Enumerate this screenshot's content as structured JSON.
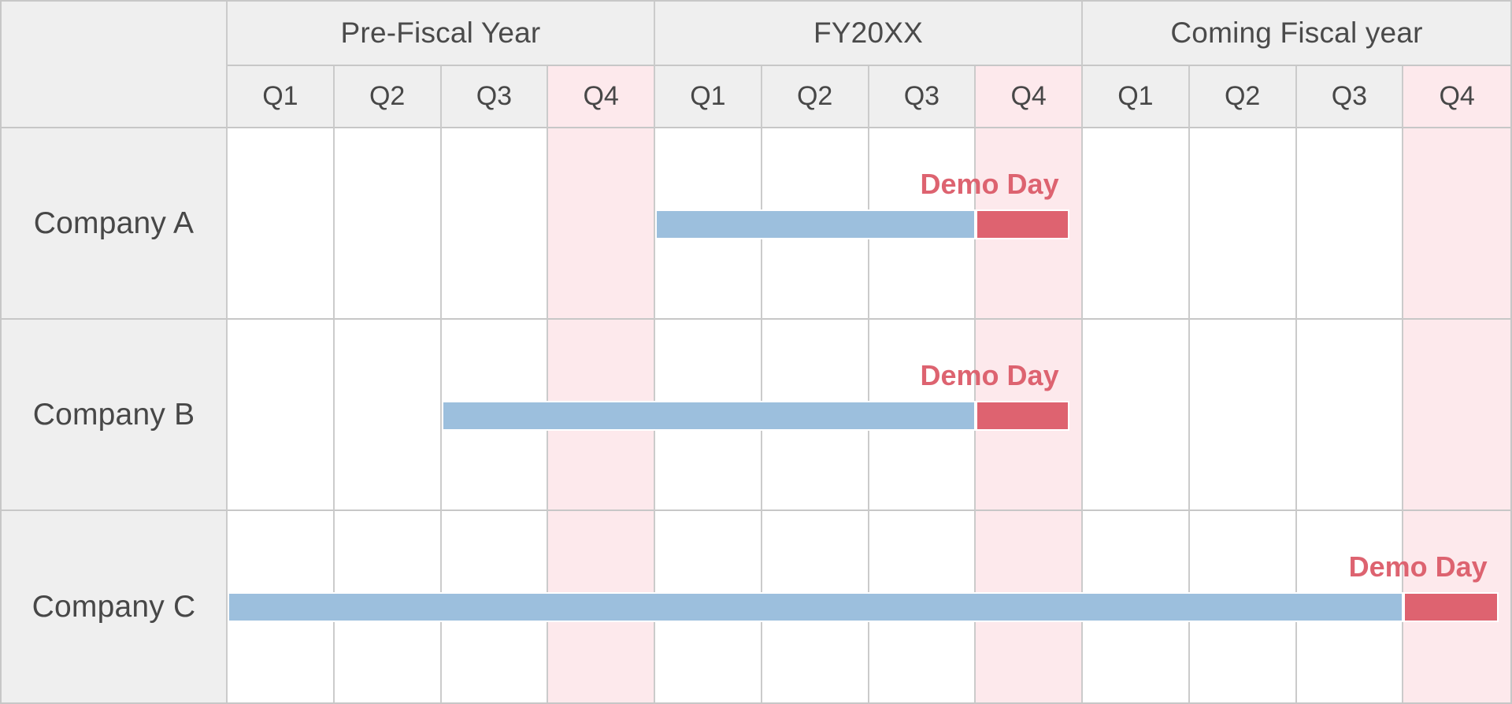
{
  "table": {
    "sections": [
      {
        "label": "Pre-Fiscal Year"
      },
      {
        "label": "FY20XX"
      },
      {
        "label": "Coming Fiscal year"
      }
    ],
    "quarters": [
      "Q1",
      "Q2",
      "Q3",
      "Q4",
      "Q1",
      "Q2",
      "Q3",
      "Q4",
      "Q1",
      "Q2",
      "Q3",
      "Q4"
    ],
    "rows": [
      {
        "label": "Company A",
        "demo_label": "Demo Day"
      },
      {
        "label": "Company B",
        "demo_label": "Demo Day"
      },
      {
        "label": "Company C",
        "demo_label": "Demo Day"
      }
    ]
  },
  "colors": {
    "header_bg": "#efefef",
    "highlight_q4_bg": "#fde9ec",
    "bar_blue": "#9cbfdd",
    "bar_red": "#de6370",
    "demo_text": "#dd6370",
    "grid_line": "#c7c7c7",
    "label_text": "#474747"
  },
  "chart_data": {
    "type": "gantt",
    "title": "",
    "sections": [
      "Pre-Fiscal Year",
      "FY20XX",
      "Coming Fiscal year"
    ],
    "quarters_per_section": [
      "Q1",
      "Q2",
      "Q3",
      "Q4"
    ],
    "highlighted_columns": [
      "Pre-Fiscal Year Q4",
      "FY20XX Q4",
      "Coming Fiscal year Q4"
    ],
    "rows": [
      {
        "name": "Company A",
        "activity_start": "FY20XX Q1",
        "activity_end": "FY20XX Q3",
        "demo_quarter": "FY20XX Q4",
        "annotation": "Demo Day"
      },
      {
        "name": "Company B",
        "activity_start": "Pre-Fiscal Year Q3",
        "activity_end": "FY20XX Q3",
        "demo_quarter": "FY20XX Q4",
        "annotation": "Demo Day"
      },
      {
        "name": "Company C",
        "activity_start": "Pre-Fiscal Year Q1",
        "activity_end": "Coming Fiscal year Q3",
        "demo_quarter": "Coming Fiscal year Q4",
        "annotation": "Demo Day"
      }
    ],
    "legend": "none",
    "grid": true
  }
}
